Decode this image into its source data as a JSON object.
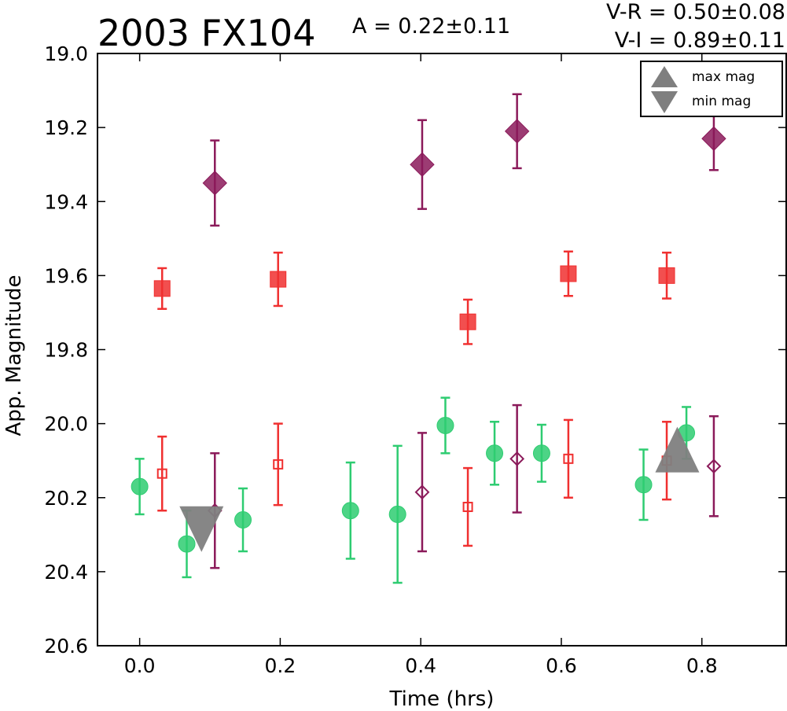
{
  "chart_data": {
    "type": "scatter",
    "title": "2003 FX104",
    "annotations": {
      "amplitude": "A  = 0.22±0.11",
      "v_r": "V-R = 0.50±0.08",
      "v_i": "V-I  = 0.89±0.11"
    },
    "xlabel": "Time (hrs)",
    "ylabel": "App. Magnitude",
    "xlim": [
      -0.06,
      0.92
    ],
    "ylim": [
      19.0,
      20.6
    ],
    "y_inverted": true,
    "xticks": [
      "0.0",
      "0.2",
      "0.4",
      "0.6",
      "0.8"
    ],
    "yticks": [
      "19.0",
      "19.2",
      "19.4",
      "19.6",
      "19.8",
      "20.0",
      "20.2",
      "20.4",
      "20.6"
    ],
    "grid": false,
    "legend": {
      "position": "top-right",
      "entries": [
        {
          "marker": "triangle-up",
          "label": "max mag"
        },
        {
          "marker": "triangle-down",
          "label": "min mag"
        }
      ]
    },
    "colors": {
      "green": "#2ecc71",
      "red": "#f03030",
      "purple": "#8b1a5a",
      "gray": "#7f7f7f"
    },
    "series": [
      {
        "color": "green",
        "marker": "circle",
        "filled": true,
        "points": [
          {
            "x": 0.0,
            "y": 20.17,
            "err": 0.075
          },
          {
            "x": 0.067,
            "y": 20.325,
            "err": 0.09
          },
          {
            "x": 0.147,
            "y": 20.26,
            "err": 0.085
          },
          {
            "x": 0.3,
            "y": 20.235,
            "err": 0.13
          },
          {
            "x": 0.367,
            "y": 20.245,
            "err": 0.185
          },
          {
            "x": 0.435,
            "y": 20.005,
            "err": 0.075
          },
          {
            "x": 0.505,
            "y": 20.08,
            "err": 0.085
          },
          {
            "x": 0.572,
            "y": 20.08,
            "err": 0.077
          },
          {
            "x": 0.717,
            "y": 20.165,
            "err": 0.095
          },
          {
            "x": 0.778,
            "y": 20.025,
            "err": 0.07
          }
        ]
      },
      {
        "color": "red",
        "marker": "square",
        "filled": true,
        "points": [
          {
            "x": 0.032,
            "y": 19.635,
            "err": 0.055
          },
          {
            "x": 0.197,
            "y": 19.61,
            "err": 0.072
          },
          {
            "x": 0.467,
            "y": 19.725,
            "err": 0.06
          },
          {
            "x": 0.61,
            "y": 19.595,
            "err": 0.06
          },
          {
            "x": 0.75,
            "y": 19.6,
            "err": 0.062
          }
        ]
      },
      {
        "color": "purple",
        "marker": "diamond",
        "filled": true,
        "points": [
          {
            "x": 0.107,
            "y": 19.35,
            "err": 0.115
          },
          {
            "x": 0.402,
            "y": 19.3,
            "err": 0.12
          },
          {
            "x": 0.537,
            "y": 19.21,
            "err": 0.1
          },
          {
            "x": 0.817,
            "y": 19.23,
            "err": 0.085
          }
        ]
      },
      {
        "color": "red",
        "marker": "square",
        "filled": false,
        "points": [
          {
            "x": 0.032,
            "y": 20.135,
            "err": 0.1
          },
          {
            "x": 0.197,
            "y": 20.11,
            "err": 0.11
          },
          {
            "x": 0.467,
            "y": 20.225,
            "err": 0.105
          },
          {
            "x": 0.61,
            "y": 20.095,
            "err": 0.105
          },
          {
            "x": 0.75,
            "y": 20.1,
            "err": 0.105
          }
        ]
      },
      {
        "color": "purple",
        "marker": "diamond",
        "filled": false,
        "points": [
          {
            "x": 0.107,
            "y": 20.235,
            "err": 0.155
          },
          {
            "x": 0.402,
            "y": 20.185,
            "err": 0.16
          },
          {
            "x": 0.537,
            "y": 20.095,
            "err": 0.145
          },
          {
            "x": 0.817,
            "y": 20.115,
            "err": 0.135
          }
        ]
      }
    ],
    "extrema_markers": [
      {
        "type": "min",
        "marker": "triangle-down",
        "x": 0.088,
        "y": 20.285
      },
      {
        "type": "max",
        "marker": "triangle-up",
        "x": 0.765,
        "y": 20.07
      }
    ]
  }
}
